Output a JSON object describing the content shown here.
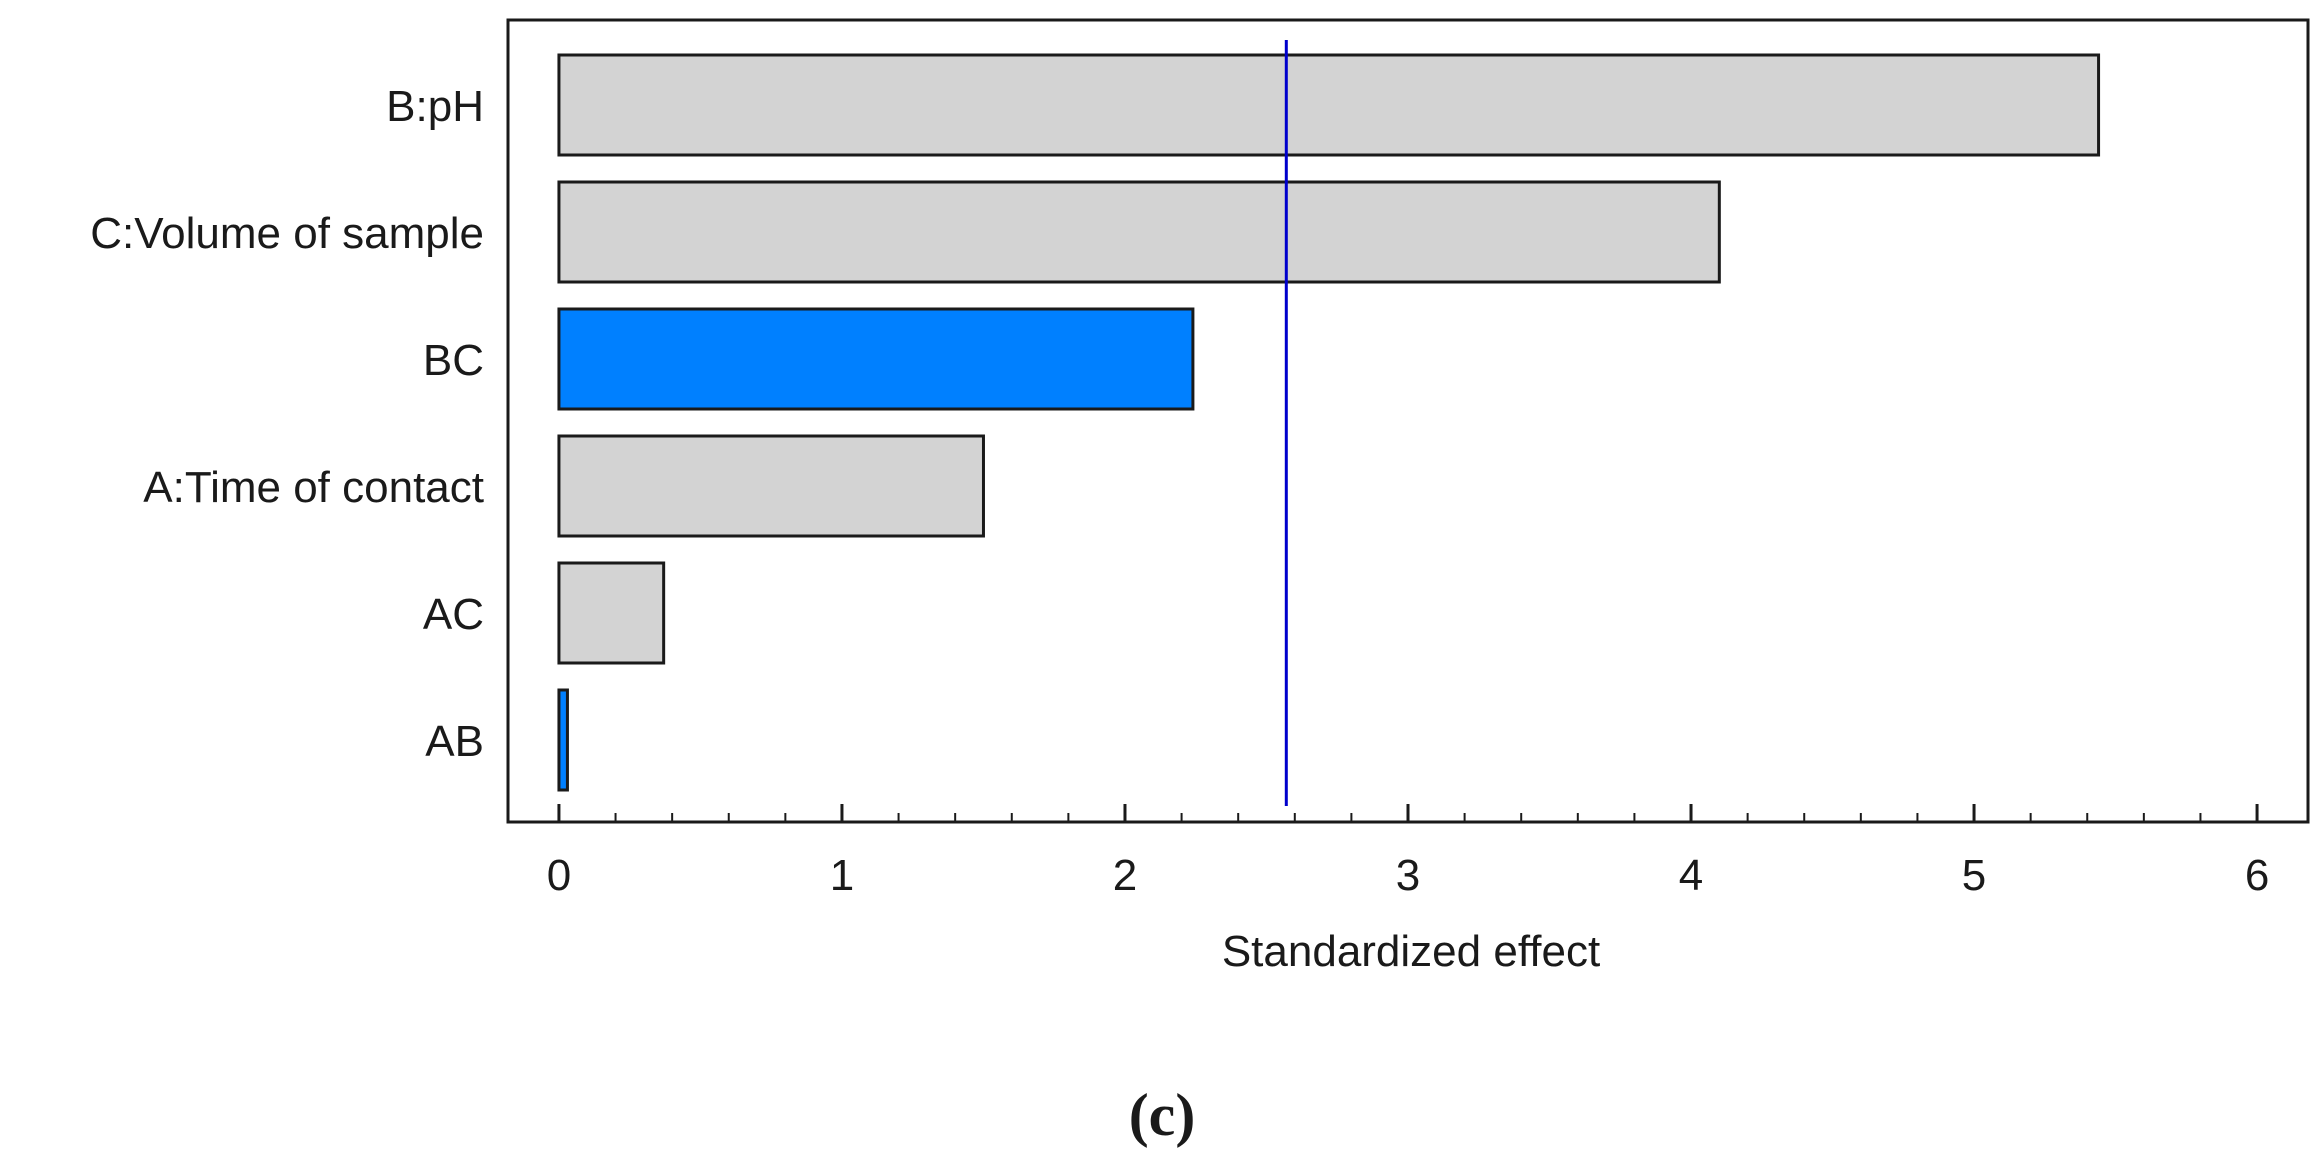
{
  "chart_data": {
    "type": "bar",
    "orientation": "horizontal",
    "title": "",
    "xlabel": "Standardized effect",
    "ylabel": "",
    "xlim": [
      -0.18,
      6.18
    ],
    "xticks": [
      0,
      1,
      2,
      3,
      4,
      5,
      6
    ],
    "categories": [
      "B:pH",
      "C:Volume of sample",
      "BC",
      "A:Time of contact",
      "AC",
      "AB"
    ],
    "values": [
      5.44,
      4.1,
      2.24,
      1.5,
      0.37,
      0.03
    ],
    "sign": [
      "positive",
      "positive",
      "negative",
      "positive",
      "positive",
      "negative"
    ],
    "reference_line": 2.57,
    "grid": false,
    "caption": "(c)"
  },
  "colors": {
    "positive": "#d3d3d3",
    "negative": "#0080ff",
    "reference_line": "#0000cc",
    "axis": "#1a1a1a"
  }
}
